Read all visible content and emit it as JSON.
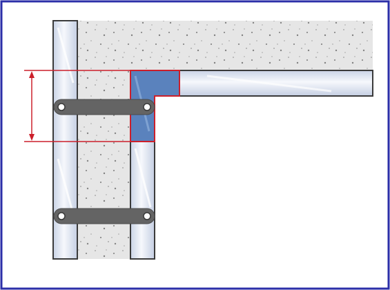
{
  "diagram": {
    "description_text": "",
    "colors": {
      "frame_border": "#2b2ea8",
      "concrete_fill": "#e6e6e6",
      "concrete_speckle": "#8c8c8c",
      "panel_fill": "#dfe6f3",
      "panel_highlight": "#f7f9fd",
      "panel_outline": "#3a3a3a",
      "joint_fill": "#5a82bd",
      "tie_fill": "#646464",
      "tie_hole": "#ffffff",
      "dimension_line": "#cc1f2a",
      "dimension_arrow": "#cc1f2a"
    },
    "icons": [
      "dimension-arrow-icon",
      "tie-bolt-icon"
    ]
  }
}
